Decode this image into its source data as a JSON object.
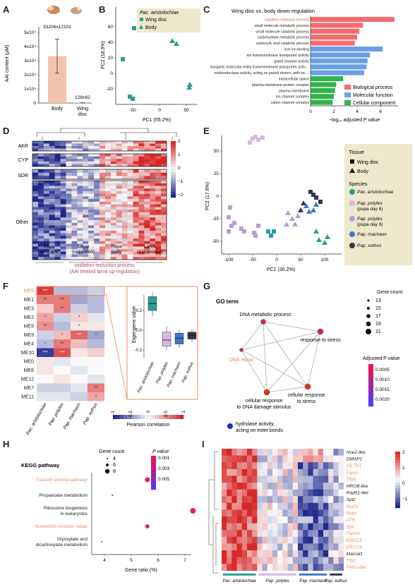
{
  "panel_labels": [
    "A",
    "B",
    "C",
    "D",
    "E",
    "F",
    "G",
    "H",
    "I"
  ],
  "A": {
    "ylabel": "AAI content (μM)",
    "yticks": [
      "0",
      "1x10⁴",
      "2x10⁴",
      "3x10⁴",
      "4x10⁴",
      "5x10⁴"
    ],
    "bars": [
      {
        "category": "Body",
        "value": 33206,
        "error": 12101,
        "label": "33206±12101",
        "color": "#f2c4b0"
      },
      {
        "category": "Wing\ndisc",
        "value": 128,
        "error": 62,
        "label": "128±62",
        "color": "#f2c4b0"
      }
    ]
  },
  "B": {
    "title": "Pac. aristolochiae",
    "legend": [
      {
        "label": "Wing disc",
        "marker": "square"
      },
      {
        "label": "Body",
        "marker": "triangle"
      }
    ],
    "xlabel": "PC1 (55.2%)",
    "ylabel": "PC2 (18.9%)",
    "xticks": [
      "-50",
      "0",
      "50"
    ],
    "yticks": [
      "-20",
      "0",
      "20",
      "40",
      "60"
    ],
    "color": "#2a9d8f"
  },
  "C": {
    "title": "Wing disc vs. body down-regulation",
    "xlabel": "−log₁₀ adjusted P value",
    "xticks": [
      "0",
      "2",
      "4",
      "6"
    ],
    "terms": [
      {
        "term": "oxidation-reduction process",
        "value": 7.2,
        "cat": "bp",
        "highlight": true
      },
      {
        "term": "small molecule metabolic process",
        "value": 4.5,
        "cat": "bp"
      },
      {
        "term": "small molecule catabolic process",
        "value": 4.2,
        "cat": "bp"
      },
      {
        "term": "carbohydrate metabolic process",
        "value": 4.0,
        "cat": "bp"
      },
      {
        "term": "carboxylic acid catabolic process",
        "value": 3.8,
        "cat": "bp"
      },
      {
        "term": "iron ion binding",
        "value": 6.2,
        "cat": "mf"
      },
      {
        "term": "ion transmembrane transporter activity",
        "value": 5.1,
        "cat": "mf"
      },
      {
        "term": "gated channel activity",
        "value": 4.9,
        "cat": "mf"
      },
      {
        "term": "inorganic molecular entity transmembrane transporter activity",
        "value": 4.8,
        "cat": "mf"
      },
      {
        "term": "oxidoreductase activity, acting on paired donors, with incorporation or reduction of molecular oxygen",
        "value": 4.6,
        "cat": "mf"
      },
      {
        "term": "extracellular space",
        "value": 2.8,
        "cat": "cc"
      },
      {
        "term": "plasma membrane protein complex",
        "value": 2.2,
        "cat": "cc"
      },
      {
        "term": "plasma membrane",
        "value": 2.1,
        "cat": "cc"
      },
      {
        "term": "ion channel complex",
        "value": 2.0,
        "cat": "cc"
      },
      {
        "term": "cation channel complex",
        "value": 1.9,
        "cat": "cc"
      }
    ],
    "legend": [
      {
        "label": "Biological process",
        "color": "#f36b6b"
      },
      {
        "label": "Molecular function",
        "color": "#6a9ee8"
      },
      {
        "label": "Cellular component",
        "color": "#2fb34a"
      }
    ]
  },
  "D": {
    "row_groups": [
      "AKR",
      "CYP",
      "SDR",
      "Other"
    ],
    "col_groups": [
      "Pupa\nwing disc",
      "Larva\n(untreated)",
      "Pupa\nbody",
      "Larva\n(AAI treated)"
    ],
    "caption": "oxidation-reduction process\n(AAI treated larva up-regulation)",
    "scale_ticks": [
      "2",
      "1",
      "0",
      "−1",
      "−2"
    ]
  },
  "E": {
    "xlabel": "PC1 (30.2%)",
    "ylabel": "PC2 (17.6%)",
    "xticks": [
      "-100",
      "-50",
      "0",
      "50",
      "100"
    ],
    "yticks": [
      "-50",
      "-25",
      "0",
      "25",
      "50"
    ],
    "tissue_title": "Tissue",
    "tissue": [
      {
        "label": "Wing disc",
        "marker": "square"
      },
      {
        "label": "Body",
        "marker": "triangle"
      }
    ],
    "species_title": "Species",
    "species": [
      {
        "label": "Pac. aristolochiae",
        "color": "#2a9d8f"
      },
      {
        "label": "Pap. polytes (pupa day 6)",
        "color": "#d7b8e8"
      },
      {
        "label": "Pap. polytes (pupa day 9)",
        "color": "#b79cd2"
      },
      {
        "label": "Pap. machaon",
        "color": "#3f78c9"
      },
      {
        "label": "Pap. xuthus",
        "color": "#2f3550"
      }
    ]
  },
  "F": {
    "modules": [
      "ME5",
      "ME1",
      "ME3",
      "ME2",
      "ME8",
      "ME9",
      "ME4",
      "ME10",
      "ME0",
      "ME6",
      "ME12",
      "ME7",
      "ME11"
    ],
    "species": [
      "Pac. aristolochiae",
      "Pap. polytes",
      "Pap. machaon",
      "Pap. xuthus"
    ],
    "legend_title": "Pearson correlation",
    "legend_ticks": [
      "-1",
      "-0.5",
      "0",
      "0.5",
      "1"
    ],
    "inset_ylabel": "Eigengene value",
    "inset_yticks": [
      "0.2",
      "0.0",
      "-0.2"
    ]
  },
  "G": {
    "title": "GO term",
    "nodes": [
      "DNA metabolic process",
      "response to stress",
      "cellular response to stress",
      "cellular response to DNA damage stimulus",
      "DNA repair"
    ],
    "extra": "hydrolase activity, acting on ester bonds",
    "size_title": "Gene count",
    "size_values": [
      "13",
      "15",
      "17",
      "19",
      "21"
    ],
    "color_title": "Adjusted P value",
    "color_ticks": [
      "0.0005",
      "0.0010",
      "0.0015",
      "0.0020"
    ]
  },
  "H": {
    "title": "KEGG pathway",
    "xlabel": "Gene ratio (%)",
    "xticks": [
      "4",
      "5",
      "6",
      "7"
    ],
    "pathways": [
      "Fanconi anemia pathway",
      "Propanoate metabolism",
      "Ribosome biogenesis in eukaryotes",
      "Nucleotide excision repair",
      "Glyoxylate and dicarboxylate metabolism"
    ],
    "size_title": "Gene count",
    "size_values": [
      "4",
      "6",
      "8"
    ],
    "color_title": "P value",
    "color_ticks": [
      "0.001",
      "0.003",
      "0.005"
    ]
  },
  "I": {
    "genes": [
      "Nse2-like",
      "DMAP1",
      "CETN1",
      "FancI",
      "Tfb4",
      "HROB-like",
      "Rad51-like",
      "Sptz",
      "PolZ1",
      "PolH",
      "ATR",
      "Xpc",
      "Fancm",
      "ERCC5",
      "ERCC6",
      "Marcal1",
      "Tfb1",
      "FAN1-like"
    ],
    "species": [
      "Pac. aristolochiae",
      "Pap. polytes",
      "Pap. machaon",
      "Pap. xuthus"
    ],
    "scale_ticks": [
      "2",
      "1",
      "0",
      "−1"
    ]
  }
}
